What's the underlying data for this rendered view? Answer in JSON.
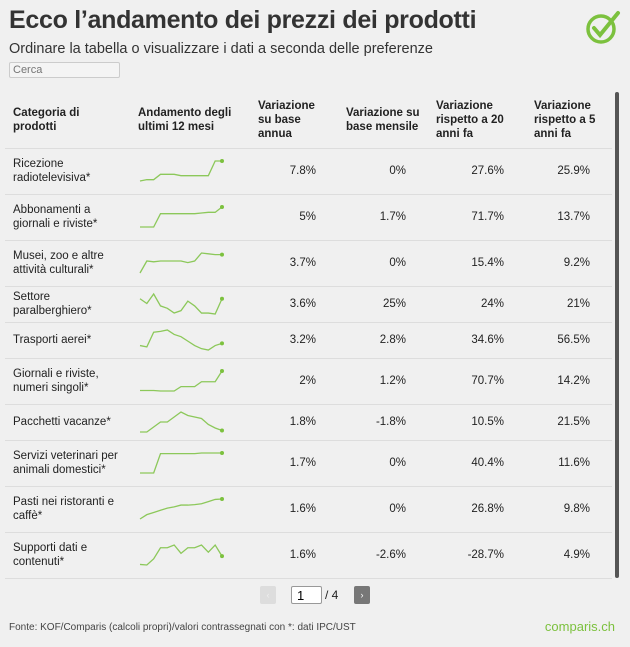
{
  "title": "Ecco l’andamento dei prezzi dei prodotti",
  "subtitle": "Ordinare la tabella o visualizzare i dati a seconda delle preferenze",
  "search": {
    "placeholder": "Cerca"
  },
  "colors": {
    "accent": "#7cc13e",
    "sparkline": "#8cc85a"
  },
  "table": {
    "headers": [
      "Categoria di prodotti",
      "Andamento degli ultimi 12 mesi",
      "Variazione su base annua",
      "Variazione su base mensile",
      "Variazione rispetto a 20 anni fa",
      "Variazione rispetto a 5 anni fa"
    ],
    "rows": [
      {
        "name": "Ricezione radiotelevisiva*",
        "annual": "7.8%",
        "monthly": "0%",
        "y20": "27.6%",
        "y5": "25.9%",
        "trend": [
          0,
          0.2,
          0.2,
          1,
          1,
          1,
          0.8,
          0.8,
          0.8,
          0.8,
          0.8,
          3,
          3
        ]
      },
      {
        "name": "Abbonamenti a giornali e riviste*",
        "annual": "5%",
        "monthly": "1.7%",
        "y20": "71.7%",
        "y5": "13.7%",
        "trend": [
          0,
          0,
          0,
          2,
          2,
          2,
          2,
          2,
          2,
          2.1,
          2.2,
          2.2,
          3
        ]
      },
      {
        "name": "Musei, zoo e altre attività culturali*",
        "annual": "3.7%",
        "monthly": "0%",
        "y20": "15.4%",
        "y5": "9.2%",
        "trend": [
          0,
          1.5,
          1.4,
          1.5,
          1.5,
          1.5,
          1.5,
          1.3,
          1.5,
          2.5,
          2.4,
          2.3,
          2.3
        ]
      },
      {
        "name": "Settore paralberghiero*",
        "annual": "3.6%",
        "monthly": "25%",
        "y20": "24%",
        "y5": "21%",
        "trend": [
          3,
          2,
          4,
          1.5,
          1,
          0,
          0.5,
          2.5,
          1.5,
          0,
          0,
          -0.2,
          3
        ]
      },
      {
        "name": "Trasporti aerei*",
        "annual": "3.2%",
        "monthly": "2.8%",
        "y20": "34.6%",
        "y5": "56.5%",
        "trend": [
          1,
          0.7,
          4,
          4.2,
          4.5,
          3.5,
          3,
          2,
          1,
          0.3,
          0,
          1,
          1.5
        ]
      },
      {
        "name": "Giornali e riviste, numeri singoli*",
        "annual": "2%",
        "monthly": "1.2%",
        "y20": "70.7%",
        "y5": "14.2%",
        "trend": [
          0,
          0,
          0,
          -0.1,
          -0.1,
          -0.1,
          0.8,
          0.8,
          0.8,
          1.8,
          1.8,
          1.8,
          4
        ]
      },
      {
        "name": "Pacchetti vacanze*",
        "annual": "1.8%",
        "monthly": "-1.8%",
        "y20": "10.5%",
        "y5": "21.5%",
        "trend": [
          0,
          0,
          1,
          2,
          2,
          3,
          4,
          3.3,
          3,
          2.7,
          1.5,
          0.8,
          0.3
        ]
      },
      {
        "name": "Servizi veterinari per animali domestici*",
        "annual": "1.7%",
        "monthly": "0%",
        "y20": "40.4%",
        "y5": "11.6%",
        "trend": [
          0,
          0,
          0,
          3,
          3,
          3,
          3,
          3,
          3,
          3.1,
          3.1,
          3.1,
          3.1
        ]
      },
      {
        "name": "Pasti nei ristoranti e caffè*",
        "annual": "1.6%",
        "monthly": "0%",
        "y20": "26.8%",
        "y5": "9.8%",
        "trend": [
          0,
          1,
          1.5,
          2,
          2.5,
          2.8,
          3.2,
          3.2,
          3.3,
          3.5,
          4,
          4.5,
          4.6
        ]
      },
      {
        "name": "Supporti dati e contenuti*",
        "annual": "1.6%",
        "monthly": "-2.6%",
        "y20": "-28.7%",
        "y5": "4.9%",
        "trend": [
          0,
          -0.1,
          1,
          3,
          3,
          3.5,
          2,
          3,
          3,
          3.5,
          2.2,
          3.5,
          1.5
        ]
      }
    ]
  },
  "pagination": {
    "prev_icon": "chevron-left-icon",
    "next_icon": "chevron-right-icon",
    "prev": "‹",
    "next": "›",
    "current": "1",
    "total": "/ 4"
  },
  "footer": {
    "source": "Fonte: KOF/Comparis (calcoli propri)/valori contrassegnati con *: dati IPC/UST",
    "brand": "comparis.ch"
  }
}
